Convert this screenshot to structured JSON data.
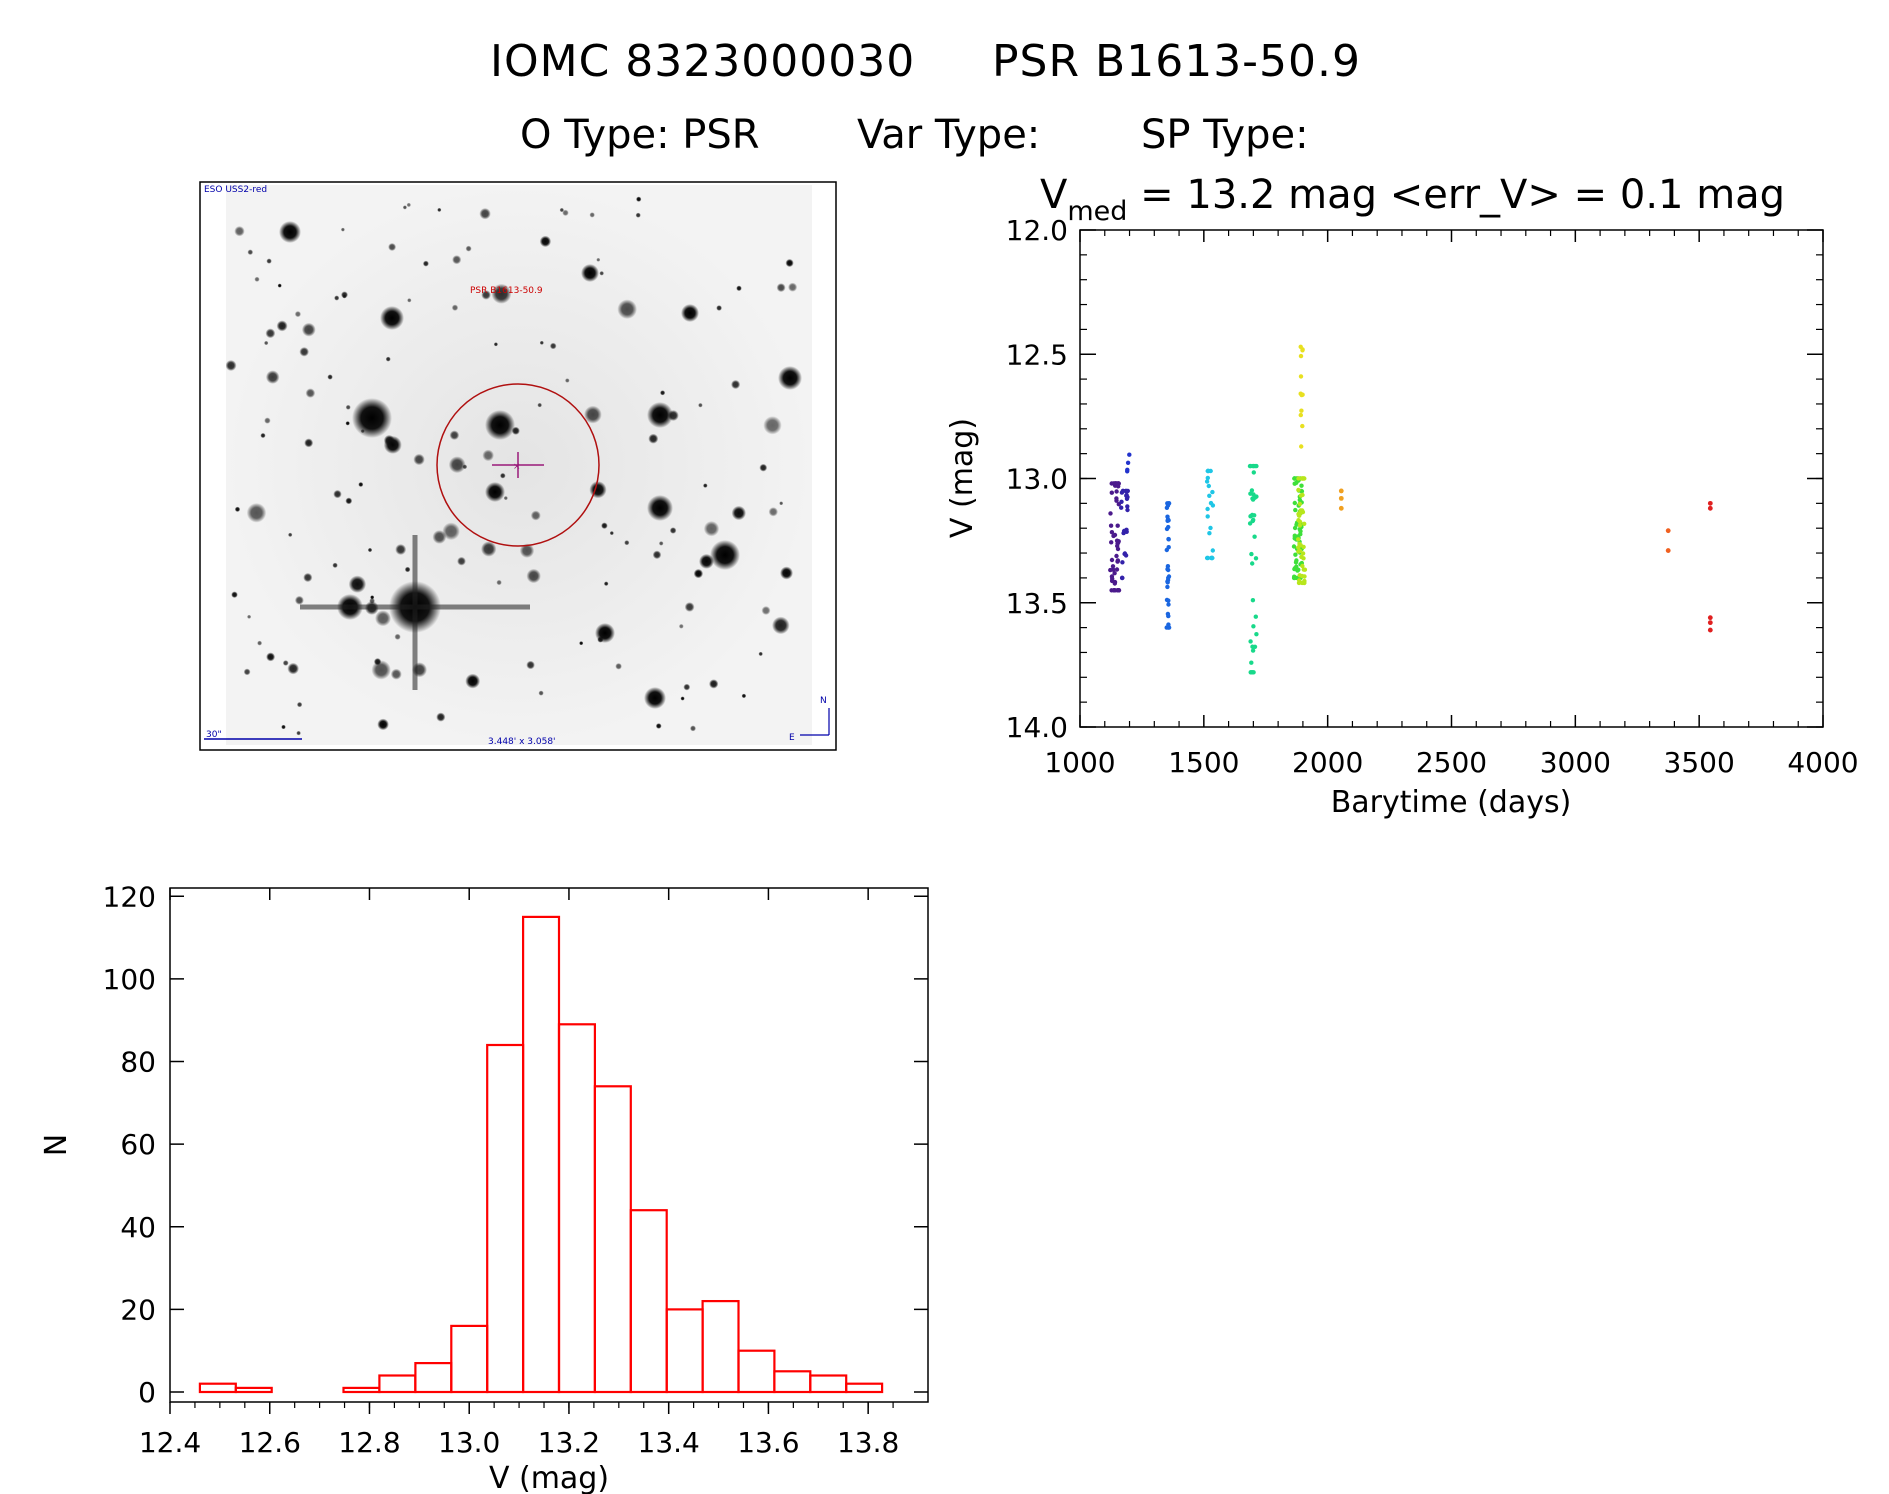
{
  "header": {
    "title_id": "IOMC 8323000030",
    "title_name": "PSR B1613-50.9",
    "o_type": "O Type: PSR",
    "var_type": "Var Type:",
    "sp_type": "SP Type:"
  },
  "finder": {
    "survey": "ESO USS2-red",
    "target_label": "PSR B1613-50.9",
    "scale_label": "30\"",
    "fov_label": "3.448' x 3.058'",
    "north_label": "N",
    "east_label": "E"
  },
  "chart_data": [
    {
      "type": "scatter",
      "title": "V_med = 13.2 mag <err_V> = 0.1 mag",
      "title_parts": {
        "v": "V",
        "sub": "med",
        "rest": " = 13.2 mag <err_V> = 0.1 mag"
      },
      "xlabel": "Barytime (days)",
      "ylabel": "V (mag)",
      "xlim": [
        1000,
        4000
      ],
      "ylim": [
        14.0,
        12.0
      ],
      "y_inverted": true,
      "xticks": [
        1000,
        1500,
        2000,
        2500,
        3000,
        3500,
        4000
      ],
      "yticks": [
        "12.0",
        "12.5",
        "13.0",
        "13.5",
        "14.0"
      ],
      "groups": [
        {
          "x_center": 1140,
          "x_spread": 18,
          "y_min": 13.02,
          "y_max": 13.45,
          "n": 55,
          "color": "#4b1a8c"
        },
        {
          "x_center": 1180,
          "x_spread": 14,
          "y_min": 13.05,
          "y_max": 13.4,
          "n": 25,
          "color": "#3322aa"
        },
        {
          "x_center": 1195,
          "x_spread": 6,
          "y_min": 12.9,
          "y_max": 12.98,
          "n": 4,
          "color": "#2233cc"
        },
        {
          "x_center": 1355,
          "x_spread": 5,
          "y_min": 13.1,
          "y_max": 13.6,
          "n": 35,
          "color": "#1a66e0"
        },
        {
          "x_center": 1525,
          "x_spread": 12,
          "y_min": 12.97,
          "y_max": 13.32,
          "n": 22,
          "color": "#1fc6e6"
        },
        {
          "x_center": 1700,
          "x_spread": 14,
          "y_min": 12.95,
          "y_max": 13.78,
          "n": 40,
          "color": "#18d98a"
        },
        {
          "x_center": 1880,
          "x_spread": 16,
          "y_min": 13.0,
          "y_max": 13.4,
          "n": 70,
          "color": "#3ee03a"
        },
        {
          "x_center": 1895,
          "x_spread": 14,
          "y_min": 13.0,
          "y_max": 13.42,
          "n": 45,
          "color": "#b8e61c"
        },
        {
          "x_center": 1895,
          "x_spread": 4,
          "y_min": 12.47,
          "y_max": 12.95,
          "n": 12,
          "color": "#e8e020"
        }
      ],
      "points": [
        {
          "x": 2055,
          "y": 13.05,
          "color": "#f0a020"
        },
        {
          "x": 2055,
          "y": 13.08,
          "color": "#f0a020"
        },
        {
          "x": 2055,
          "y": 13.12,
          "color": "#f0a020"
        },
        {
          "x": 3375,
          "y": 13.21,
          "color": "#f06020"
        },
        {
          "x": 3375,
          "y": 13.29,
          "color": "#f06020"
        },
        {
          "x": 3545,
          "y": 13.1,
          "color": "#e02020"
        },
        {
          "x": 3545,
          "y": 13.12,
          "color": "#e02020"
        },
        {
          "x": 3545,
          "y": 13.56,
          "color": "#e02020"
        },
        {
          "x": 3545,
          "y": 13.58,
          "color": "#e02020"
        },
        {
          "x": 3545,
          "y": 13.61,
          "color": "#e02020"
        }
      ]
    },
    {
      "type": "bar",
      "subtype": "histogram",
      "xlabel": "V (mag)",
      "ylabel": "N",
      "xlim": [
        12.4,
        13.92
      ],
      "ylim": [
        0,
        122
      ],
      "xticks": [
        "12.4",
        "12.6",
        "12.8",
        "13.0",
        "13.2",
        "13.4",
        "13.6",
        "13.8"
      ],
      "yticks": [
        "0",
        "20",
        "40",
        "60",
        "80",
        "100",
        "120"
      ],
      "bin_width": 0.072,
      "bin_start": 12.46,
      "values": [
        2,
        1,
        0,
        0,
        1,
        4,
        7,
        16,
        84,
        115,
        89,
        74,
        44,
        20,
        22,
        10,
        5,
        4,
        2
      ],
      "color": "#ff0000"
    }
  ]
}
